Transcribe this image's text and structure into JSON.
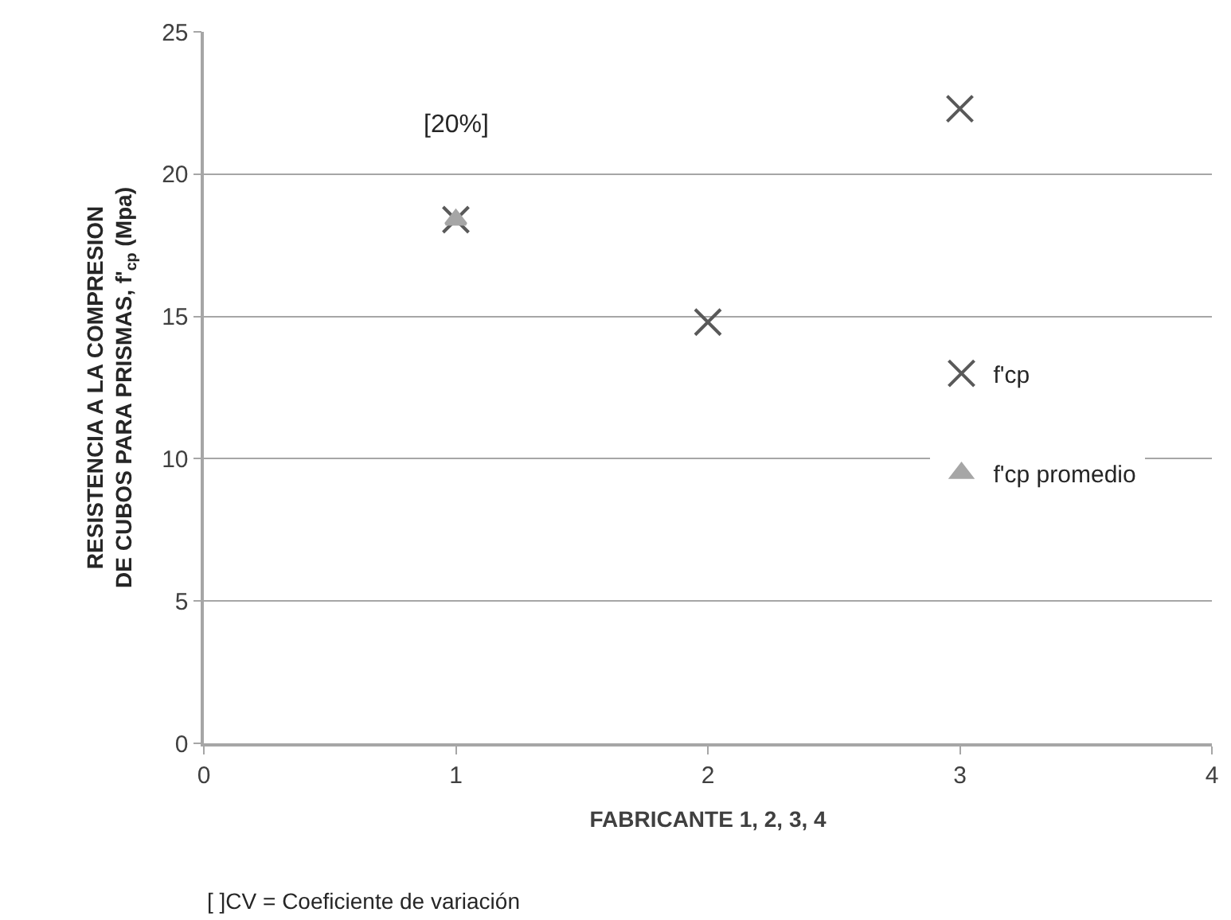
{
  "chart_data": {
    "type": "scatter",
    "xlabel": "FABRICANTE 1, 2, 3, 4",
    "ylabel": "RESISTENCIA A LA COMPRESION\nDE CUBOS PARA PRISMAS, f'$_{cp}$ (Mpa)",
    "series": [
      {
        "name": "f'cp",
        "color": "#595959",
        "marker": "cross",
        "x": [
          1,
          2,
          3
        ],
        "values": [
          18.4,
          14.8,
          22.3
        ]
      },
      {
        "name": "f'cp promedio",
        "color": "#a6a6a6",
        "marker": "triangle",
        "x": [
          1
        ],
        "values": [
          18.4
        ]
      }
    ],
    "xlim": [
      0,
      4
    ],
    "xticks": [
      0,
      1,
      2,
      3,
      4
    ],
    "ylim": [
      0,
      25
    ],
    "yticks": [
      0,
      5,
      10,
      15,
      20,
      25
    ],
    "grid": "y",
    "legend": "right",
    "annotations": [
      "[20%]",
      "[ ]CV = Coeficiente de variación"
    ]
  }
}
